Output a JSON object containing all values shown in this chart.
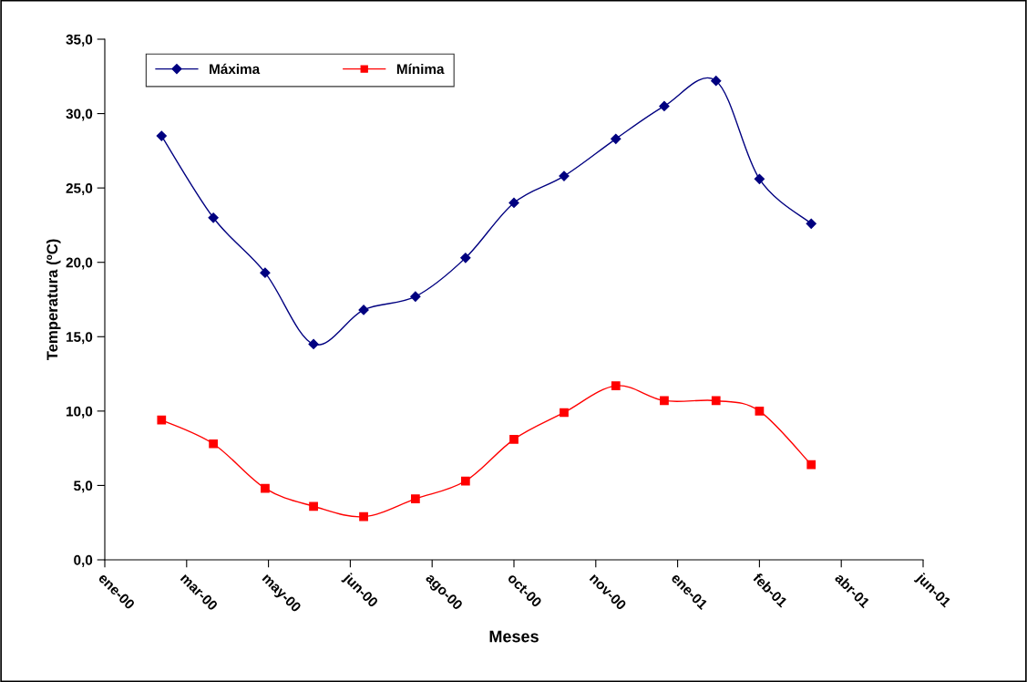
{
  "chart_data": {
    "type": "line",
    "xlabel": "Meses",
    "ylabel": "Temperatura (ºC)",
    "x": [
      "2000-03-05",
      "2000-04-05",
      "2000-05-06",
      "2000-06-04",
      "2000-07-04",
      "2000-08-04",
      "2000-09-03",
      "2000-10-02",
      "2000-11-01",
      "2000-12-02",
      "2000-12-31",
      "2001-01-31",
      "2001-02-26",
      "2001-03-29"
    ],
    "series": [
      {
        "name": "Máxima",
        "color": "#000080",
        "marker": "diamond",
        "values": [
          28.5,
          23.0,
          19.3,
          14.5,
          16.8,
          17.7,
          20.3,
          24.0,
          25.8,
          28.3,
          30.5,
          32.2,
          25.6,
          22.6
        ]
      },
      {
        "name": "Mínima",
        "color": "#ff0000",
        "marker": "square",
        "values": [
          9.4,
          7.8,
          4.8,
          3.6,
          2.9,
          4.1,
          5.3,
          8.1,
          9.9,
          11.7,
          10.7,
          10.7,
          10.0,
          6.4
        ]
      }
    ],
    "xlim": [
      "2000-01-31",
      "2001-06-04"
    ],
    "xticks": [
      {
        "value": "2000-01-31",
        "label": "ene-00"
      },
      {
        "value": "2000-03-20",
        "label": "mar-00"
      },
      {
        "value": "2000-05-08",
        "label": "may-00"
      },
      {
        "value": "2000-06-26",
        "label": "jun-00"
      },
      {
        "value": "2000-08-14",
        "label": "ago-00"
      },
      {
        "value": "2000-10-02",
        "label": "oct-00"
      },
      {
        "value": "2000-11-20",
        "label": "nov-00"
      },
      {
        "value": "2001-01-08",
        "label": "ene-01"
      },
      {
        "value": "2001-02-26",
        "label": "feb-01"
      },
      {
        "value": "2001-04-16",
        "label": "abr-01"
      },
      {
        "value": "2001-06-04",
        "label": "jun-01"
      }
    ],
    "ylim": [
      0,
      35
    ],
    "yticks": [
      {
        "value": 0,
        "label": "0,0"
      },
      {
        "value": 5,
        "label": "5,0"
      },
      {
        "value": 10,
        "label": "10,0"
      },
      {
        "value": 15,
        "label": "15,0"
      },
      {
        "value": 20,
        "label": "20,0"
      },
      {
        "value": 25,
        "label": "25,0"
      },
      {
        "value": 30,
        "label": "30,0"
      },
      {
        "value": 35,
        "label": "35,0"
      }
    ],
    "legend": "top left",
    "line_style": "solid",
    "grid": false
  }
}
